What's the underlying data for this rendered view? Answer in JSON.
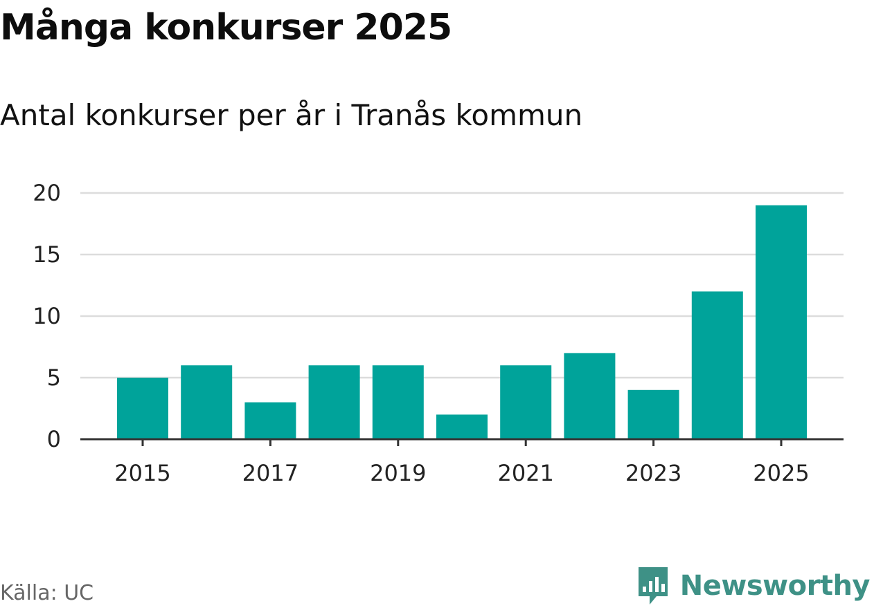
{
  "chart_data": {
    "type": "bar",
    "title": "Många konkurser 2025",
    "subtitle": "Antal konkurser per år i Tranås kommun",
    "categories": [
      "2015",
      "2016",
      "2017",
      "2018",
      "2019",
      "2020",
      "2021",
      "2022",
      "2023",
      "2024",
      "2025"
    ],
    "values": [
      5,
      6,
      3,
      6,
      6,
      2,
      6,
      7,
      4,
      12,
      19
    ],
    "x_tick_labels": [
      "2015",
      "2017",
      "2019",
      "2021",
      "2023",
      "2025"
    ],
    "y_ticks": [
      0,
      5,
      10,
      15,
      20
    ],
    "ylim": [
      0,
      20
    ],
    "xlabel": "",
    "ylabel": "",
    "grid": true,
    "bar_color": "#00a39a"
  },
  "footer": {
    "source": "Källa: UC",
    "brand": "Newsworthy",
    "brand_icon": "newsworthy-logo-icon",
    "brand_color": "#3e9186"
  }
}
